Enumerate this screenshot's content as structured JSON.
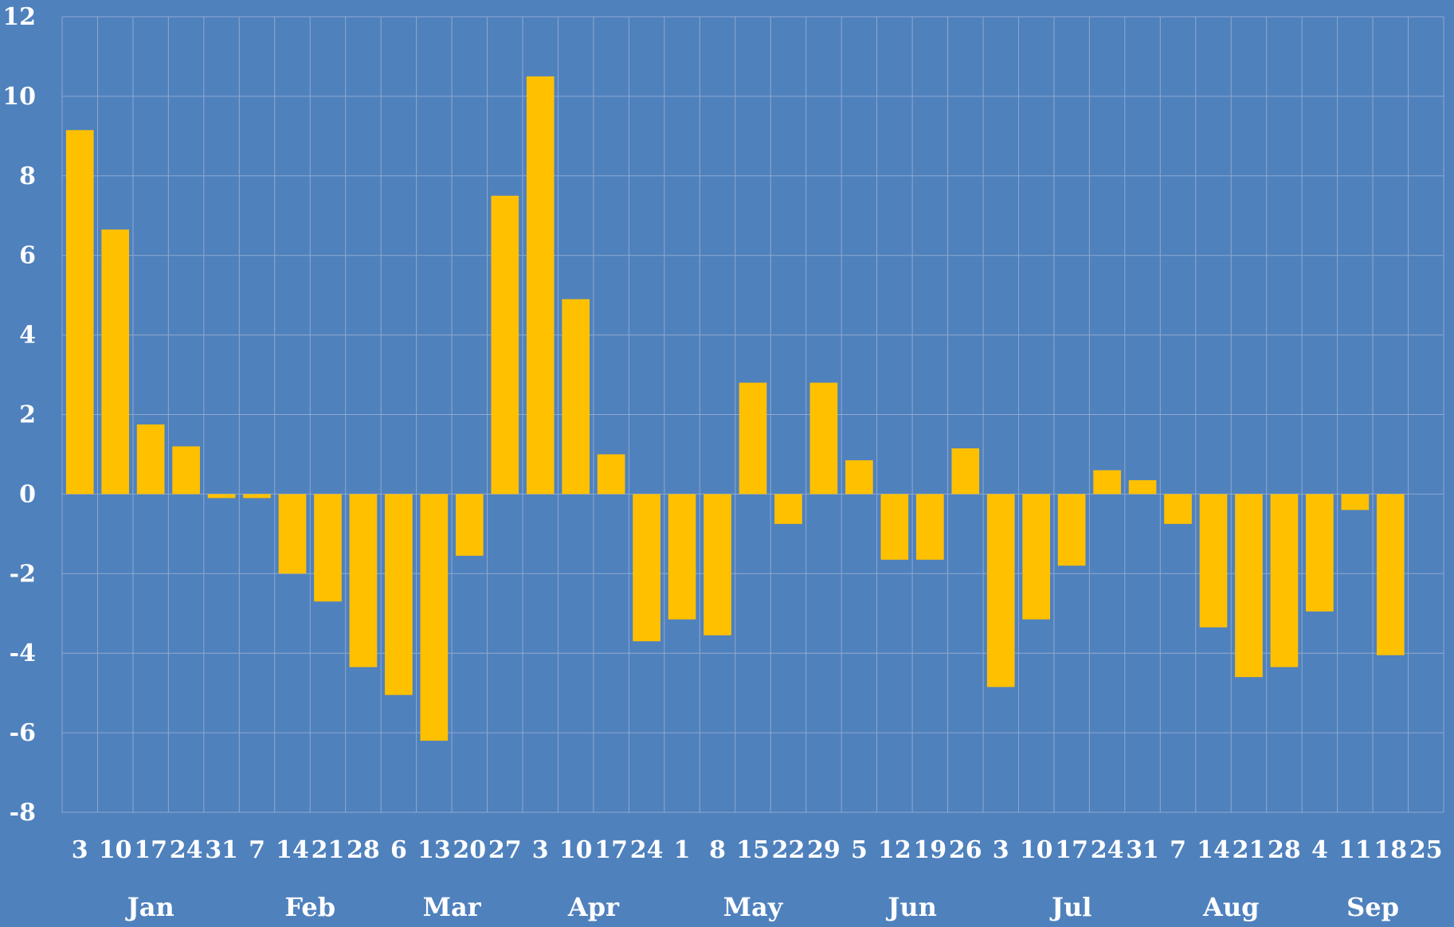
{
  "colors": {
    "background": "#4f81bd",
    "bar": "#ffc000",
    "grid": "#8fa9cf",
    "text": "#ffffff"
  },
  "chart_data": {
    "type": "bar",
    "title": "",
    "xlabel": "",
    "ylabel": "",
    "ylim": [
      -8,
      12
    ],
    "y_ticks": [
      "12",
      "10",
      "8",
      "6",
      "4",
      "2",
      "0",
      "-2",
      "-4",
      "-6",
      "-8"
    ],
    "grid": true,
    "legend": "none",
    "categories": [
      "3",
      "10",
      "17",
      "24",
      "31",
      "7",
      "14",
      "21",
      "28",
      "6",
      "13",
      "20",
      "27",
      "3",
      "10",
      "17",
      "24",
      "1",
      "8",
      "15",
      "22",
      "29",
      "5",
      "12",
      "19",
      "26",
      "3",
      "10",
      "17",
      "24",
      "31",
      "7",
      "14",
      "21",
      "28",
      "4",
      "11",
      "18",
      "25"
    ],
    "months": [
      {
        "label": "Jan",
        "start": 0,
        "end": 4
      },
      {
        "label": "Feb",
        "start": 5,
        "end": 8
      },
      {
        "label": "Mar",
        "start": 9,
        "end": 12
      },
      {
        "label": "Apr",
        "start": 13,
        "end": 16
      },
      {
        "label": "May",
        "start": 17,
        "end": 21
      },
      {
        "label": "Jun",
        "start": 22,
        "end": 25
      },
      {
        "label": "Jul",
        "start": 26,
        "end": 30
      },
      {
        "label": "Aug",
        "start": 31,
        "end": 34
      },
      {
        "label": "Sep",
        "start": 35,
        "end": 38
      }
    ],
    "values": [
      9.15,
      6.65,
      1.75,
      1.2,
      -0.1,
      -0.1,
      -2.0,
      -2.7,
      -4.35,
      -5.05,
      -6.2,
      -1.55,
      7.5,
      10.5,
      4.9,
      1.0,
      -3.7,
      -3.15,
      -3.55,
      2.8,
      -0.75,
      2.8,
      0.85,
      -1.65,
      -1.65,
      1.15,
      -4.85,
      -3.15,
      -1.8,
      0.6,
      0.35,
      -0.75,
      -3.35,
      -4.6,
      -4.35,
      -2.95,
      -0.4,
      -4.05,
      null
    ]
  }
}
